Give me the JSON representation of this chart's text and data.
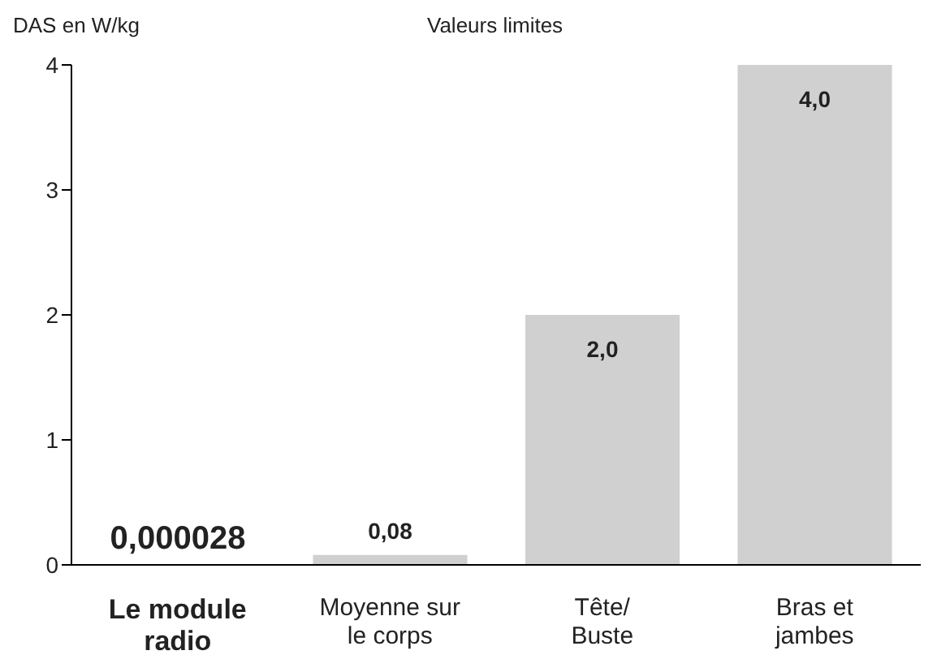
{
  "chart_data": {
    "type": "bar",
    "ylabel": "DAS en W/kg",
    "annotations": [
      "Valeurs limites"
    ],
    "categories": [
      "Le module radio",
      "Moyenne sur le corps",
      "Tête/ Buste",
      "Bras et jambes"
    ],
    "values": [
      2.8e-05,
      0.08,
      2.0,
      4.0
    ],
    "colors": [
      "#c8102e",
      "#d0d0d0",
      "#d0d0d0",
      "#d0d0d0"
    ],
    "value_labels": [
      "0,000028",
      "0,08",
      "2,0",
      "4,0"
    ],
    "ylim": [
      0,
      4
    ],
    "yticks": [
      0,
      1,
      2,
      3,
      4
    ],
    "grid": false,
    "legend": false
  }
}
